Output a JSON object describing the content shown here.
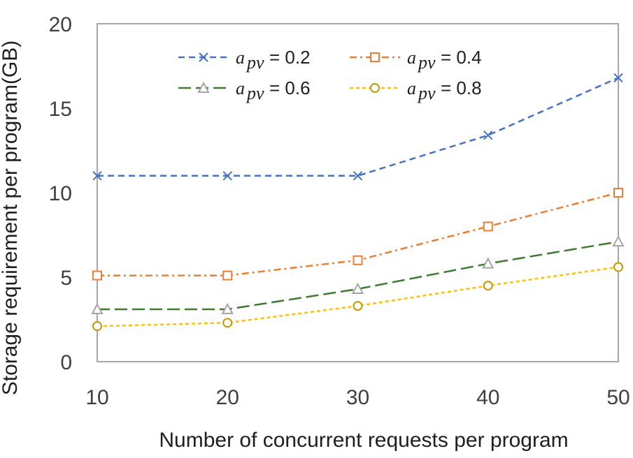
{
  "chart_data": {
    "type": "line",
    "xlabel": "Number of concurrent requests per program",
    "ylabel": "Storage requirement per program(GB)",
    "x": [
      10,
      20,
      30,
      40,
      50
    ],
    "xlim": [
      10,
      50
    ],
    "ylim": [
      0,
      20
    ],
    "yticks": [
      0,
      5,
      10,
      15,
      20
    ],
    "xtick_labels": [
      "10",
      "20",
      "30",
      "40",
      "50"
    ],
    "ytick_labels": [
      "0",
      "5",
      "10",
      "15",
      "20"
    ],
    "grid": false,
    "legend_position": "top",
    "legend_symbol": "a",
    "legend_subscript": "pv",
    "series": [
      {
        "name": "a_pv = 0.2",
        "legend_value": "= 0.2",
        "values": [
          11.0,
          11.0,
          11.0,
          13.4,
          16.8
        ],
        "color": "#4472c4",
        "marker": "x",
        "dash": "dashed"
      },
      {
        "name": "a_pv = 0.4",
        "legend_value": "= 0.4",
        "values": [
          5.1,
          5.1,
          6.0,
          8.0,
          10.0
        ],
        "color": "#ed7d31",
        "marker": "square",
        "dash": "dash-dot"
      },
      {
        "name": "a_pv = 0.6",
        "legend_value": "= 0.6",
        "values": [
          3.1,
          3.1,
          4.3,
          5.8,
          7.1
        ],
        "color": "#3d7a2f",
        "marker": "triangle",
        "dash": "long-dash"
      },
      {
        "name": "a_pv = 0.8",
        "legend_value": "= 0.8",
        "values": [
          2.1,
          2.3,
          3.3,
          4.5,
          5.6
        ],
        "color": "#ffc000",
        "marker": "circle",
        "dash": "dotted"
      }
    ]
  }
}
